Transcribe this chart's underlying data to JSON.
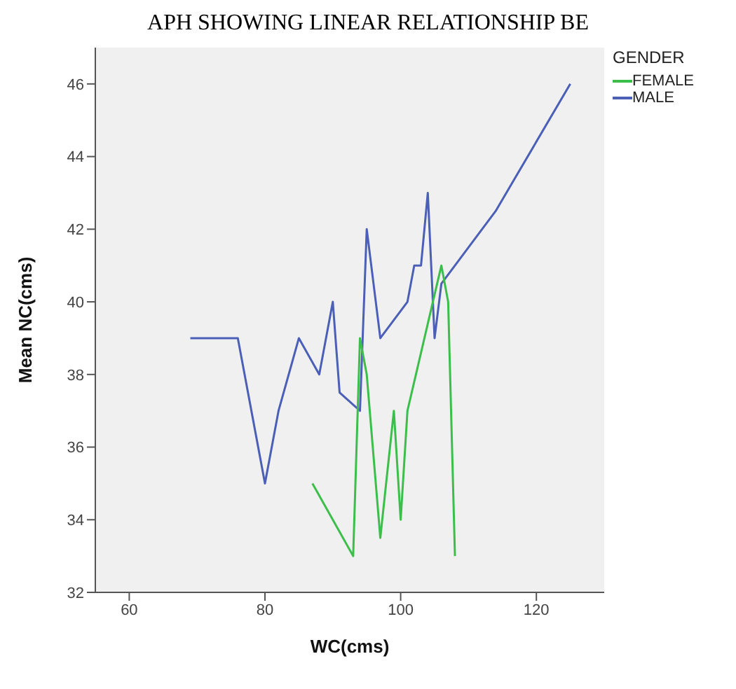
{
  "chart_data": {
    "type": "line",
    "title": "APH SHOWING LINEAR RELATIONSHIP BE",
    "xlabel": "WC(cms)",
    "ylabel": "Mean  NC(cms)",
    "legend_title": "GENDER",
    "legend": "top right",
    "grid": false,
    "marker": "none",
    "line_style": "solid",
    "xlim": [
      55,
      130
    ],
    "xticks": [
      60,
      80,
      100,
      120
    ],
    "ylim": [
      32,
      47
    ],
    "yticks": [
      32,
      34,
      36,
      38,
      40,
      42,
      44,
      46
    ],
    "series": [
      {
        "name": "MALE",
        "color": "#4a5fb5",
        "x": [
          69,
          76,
          80,
          82,
          85,
          88,
          90,
          91,
          94,
          95,
          97,
          101,
          102,
          103,
          104,
          105,
          106,
          114,
          125
        ],
        "values": [
          39,
          39,
          35,
          37,
          39,
          38,
          40,
          37.5,
          37,
          42,
          39,
          40,
          41,
          41,
          43,
          39,
          40.5,
          42.5,
          46
        ]
      },
      {
        "name": "FEMALE",
        "color": "#3cbf4a",
        "x": [
          87,
          93,
          94,
          95,
          97,
          99,
          100,
          101,
          106,
          107,
          108
        ],
        "values": [
          35,
          33,
          39,
          38,
          33.5,
          37,
          34,
          37,
          41,
          40,
          33
        ]
      }
    ]
  }
}
